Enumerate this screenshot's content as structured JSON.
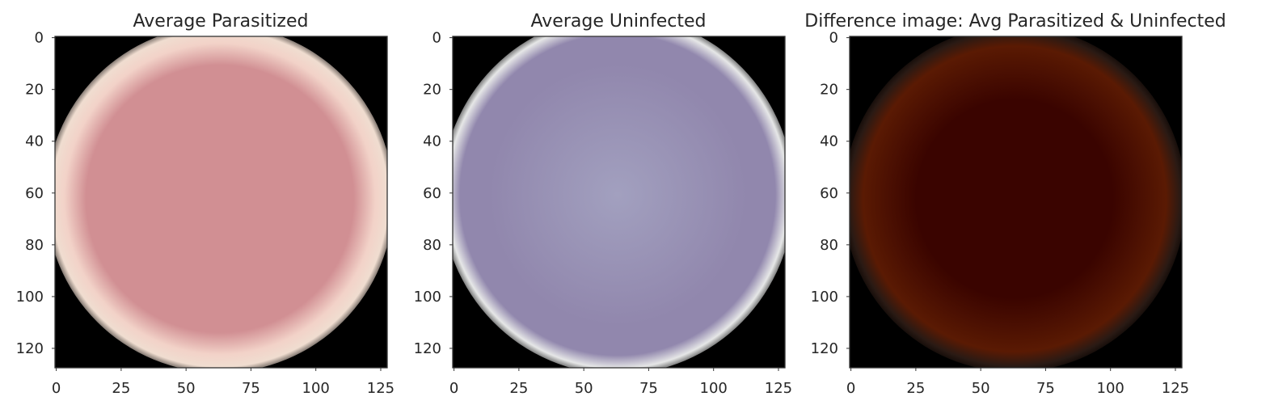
{
  "chart_data": [
    {
      "type": "image",
      "title": "Average Parasitized",
      "x_ticks": [
        0,
        25,
        50,
        75,
        100,
        125
      ],
      "y_ticks": [
        0,
        20,
        40,
        60,
        80,
        100,
        120
      ],
      "xlim": [
        0,
        128
      ],
      "ylim": [
        128,
        0
      ],
      "grid": false,
      "image": {
        "background": "#000000",
        "center_color": "#d18f93",
        "edge_color": "#f2d2c8",
        "pale_edge_color": "#f0ddd0"
      }
    },
    {
      "type": "image",
      "title": "Average Uninfected",
      "x_ticks": [
        0,
        25,
        50,
        75,
        100,
        125
      ],
      "y_ticks": [
        0,
        20,
        40,
        60,
        80,
        100,
        120
      ],
      "xlim": [
        0,
        128
      ],
      "ylim": [
        128,
        0
      ],
      "grid": false,
      "image": {
        "background": "#000000",
        "center_color": "#a2a0bf",
        "edge_color": "#9187ad",
        "pale_edge_color": "#e6e7e7"
      }
    },
    {
      "type": "image",
      "title": "Difference image: Avg Parasitized & Uninfected",
      "x_ticks": [
        0,
        25,
        50,
        75,
        100,
        125
      ],
      "y_ticks": [
        0,
        20,
        40,
        60,
        80,
        100,
        120
      ],
      "xlim": [
        0,
        128
      ],
      "ylim": [
        128,
        0
      ],
      "grid": false,
      "image": {
        "background": "#000000",
        "center_color": "#3a0400",
        "edge_color": "#5a1a03",
        "pale_edge_color": "#2a1a14"
      }
    }
  ]
}
